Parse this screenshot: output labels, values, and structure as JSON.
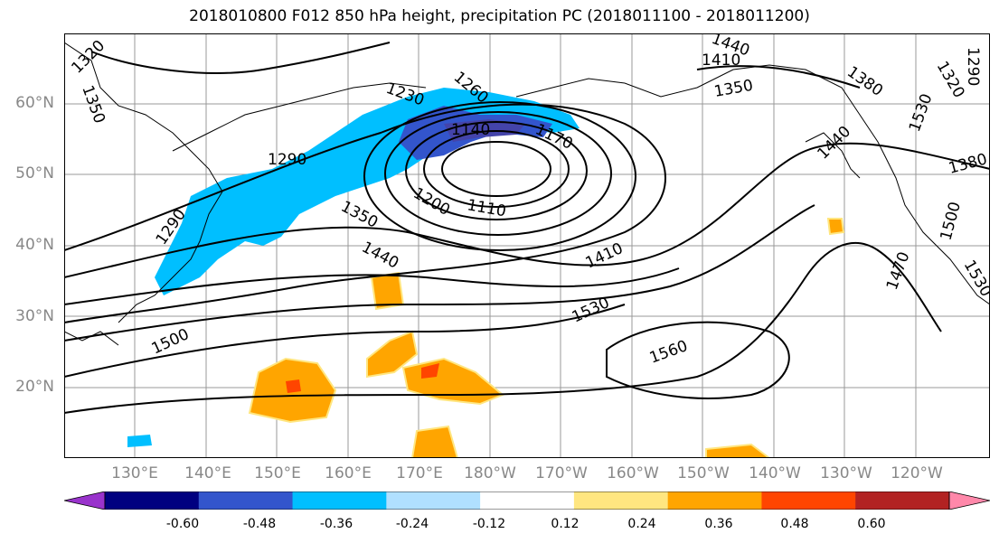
{
  "title": "2018010800 F012 850 hPa height, precipitation PC (2018011100 - 2018011200)",
  "lat_labels": [
    "60°N",
    "50°N",
    "40°N",
    "30°N",
    "20°N"
  ],
  "lon_labels": [
    "130°E",
    "140°E",
    "150°E",
    "160°E",
    "170°E",
    "180°W",
    "170°W",
    "160°W",
    "150°W",
    "140°W",
    "130°W",
    "120°W"
  ],
  "contour_labels": [
    "1320",
    "1350",
    "1290",
    "1290",
    "1230",
    "1260",
    "1140",
    "1170",
    "1200",
    "1110",
    "1350",
    "1440",
    "1410",
    "1440",
    "1350",
    "1380",
    "1440",
    "1380",
    "1500",
    "1530",
    "1410",
    "1530",
    "1500",
    "1560",
    "1470",
    "1530",
    "1290",
    "1320"
  ],
  "colorbar": {
    "colors": [
      "#9933cc",
      "#000080",
      "#3355cc",
      "#00bfff",
      "#b0e0ff",
      "#ffffff",
      "#ffe680",
      "#ffa500",
      "#ff4500",
      "#b22222",
      "#ff88aa"
    ],
    "tick_labels": [
      "-0.60",
      "-0.48",
      "-0.36",
      "-0.24",
      "-0.12",
      "0.12",
      "0.24",
      "0.36",
      "0.48",
      "0.60"
    ]
  }
}
